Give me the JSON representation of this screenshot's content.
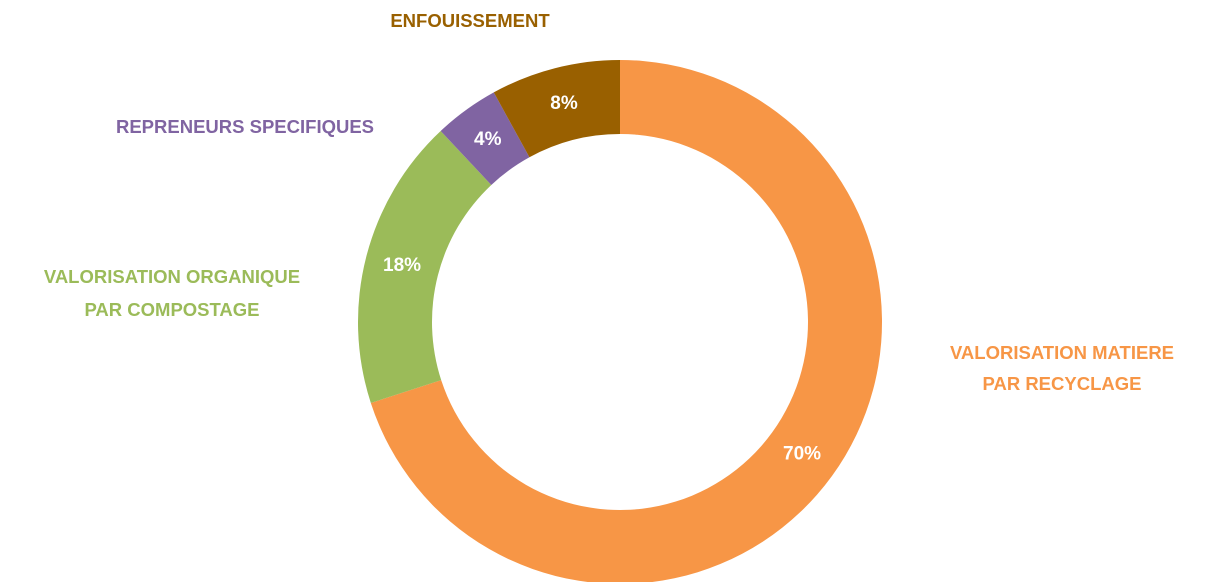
{
  "chart_data": {
    "type": "donut",
    "categories": [
      [
        "VALORISATION MATIERE",
        "PAR RECYCLAGE"
      ],
      [
        "VALORISATION ORGANIQUE",
        "PAR COMPOSTAGE"
      ],
      [
        "REPRENEURS SPECIFIQUES"
      ],
      [
        "ENFOUISSEMENT"
      ]
    ],
    "values": [
      70,
      18,
      4,
      8
    ],
    "value_labels": [
      "70%",
      "18%",
      "4%",
      "8%"
    ],
    "colors": [
      "#f79646",
      "#9bbb59",
      "#8064a2",
      "#996000"
    ]
  }
}
